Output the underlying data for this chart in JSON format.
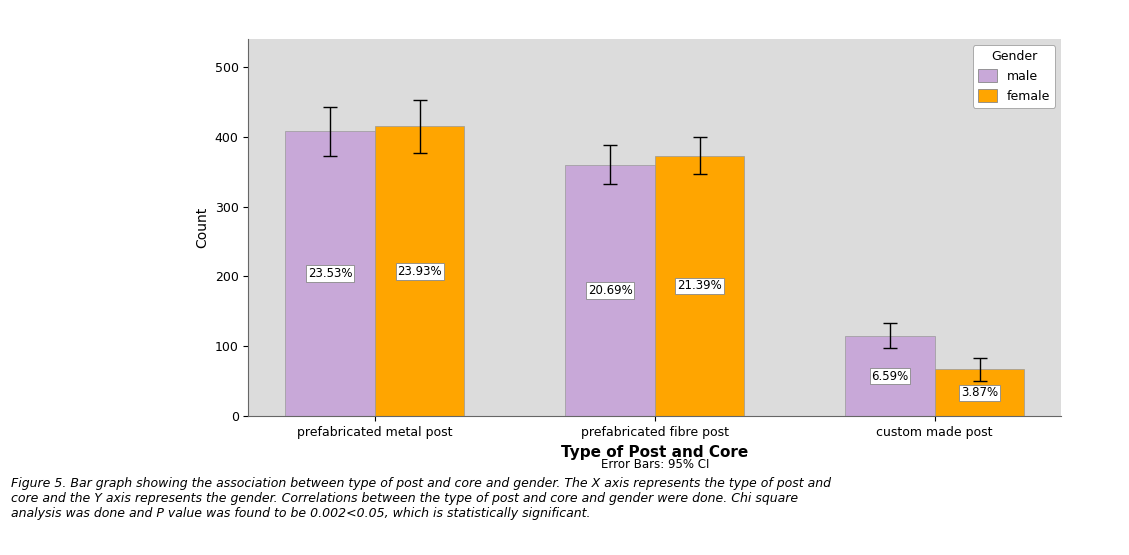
{
  "categories": [
    "prefabricated metal post",
    "prefabricated fibre post",
    "custom made post"
  ],
  "male_values": [
    408,
    360,
    115
  ],
  "female_values": [
    415,
    373,
    67
  ],
  "male_errors": [
    35,
    28,
    18
  ],
  "female_errors": [
    38,
    27,
    16
  ],
  "male_labels": [
    "23.53%",
    "20.69%",
    "6.59%"
  ],
  "female_labels": [
    "23.93%",
    "21.39%",
    "3.87%"
  ],
  "male_color": "#C8A8D8",
  "female_color": "#FFA500",
  "ylabel": "Count",
  "xlabel": "Type of Post and Core",
  "xlabel_fontsize": 11,
  "ylabel_fontsize": 10,
  "error_bar_note": "Error Bars: 95% CI",
  "legend_title": "Gender",
  "legend_male": "male",
  "legend_female": "female",
  "ylim": [
    0,
    540
  ],
  "yticks": [
    0,
    100,
    200,
    300,
    400,
    500
  ],
  "background_color": "#DCDCDC",
  "label_fontsize": 8.5,
  "caption": "Figure 5. Bar graph showing the association between type of post and core and gender. The X axis represents the type of post and core and the Y axis represents the gender. Correlations between the type of post and core and gender were done. Chi square analysis was done and P value was found to be 0.002<0.05, which is statistically significant."
}
